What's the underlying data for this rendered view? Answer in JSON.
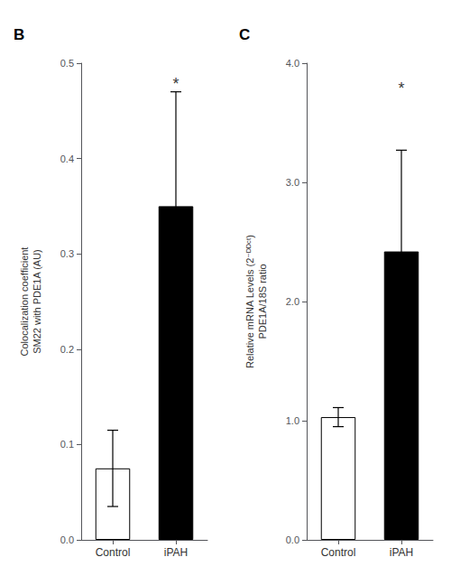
{
  "chart_data": [
    {
      "type": "bar",
      "title": "B",
      "categories": [
        "Control",
        "iPAH"
      ],
      "values": [
        0.075,
        0.35
      ],
      "errors": [
        0.04,
        0.12
      ],
      "colors": [
        "white",
        "black"
      ],
      "ylabel": "Colocalization coefficient\nSM22 with PDE1A (AU)",
      "ylim": [
        0,
        0.5
      ],
      "yticks": [
        {
          "value": 0,
          "label": "0.0"
        },
        0.1,
        0.2,
        0.3,
        0.4,
        0.5
      ],
      "annotations": [
        {
          "text": "*",
          "x": "iPAH",
          "y": 0.47
        }
      ],
      "grid": false
    },
    {
      "type": "bar",
      "title": "C",
      "categories": [
        "Control",
        "iPAH"
      ],
      "values": [
        1.03,
        2.42
      ],
      "errors": [
        0.08,
        0.85
      ],
      "colors": [
        "white",
        "black"
      ],
      "ylabel": "Relative mRNA Levels (2⁻ᴰᴰᶜᵗ)\nPDE1A/18S ratio",
      "ylim": [
        0,
        4.0
      ],
      "yticks": [
        {
          "value": 0,
          "label": "0.0"
        },
        {
          "value": 1,
          "label": "1.0"
        },
        {
          "value": 2,
          "label": "2.0"
        },
        {
          "value": 3,
          "label": "3.0"
        },
        {
          "value": 4,
          "label": "4.0"
        }
      ],
      "annotations": [
        {
          "text": "*",
          "x": "iPAH",
          "y": 3.72
        }
      ],
      "grid": false
    }
  ]
}
